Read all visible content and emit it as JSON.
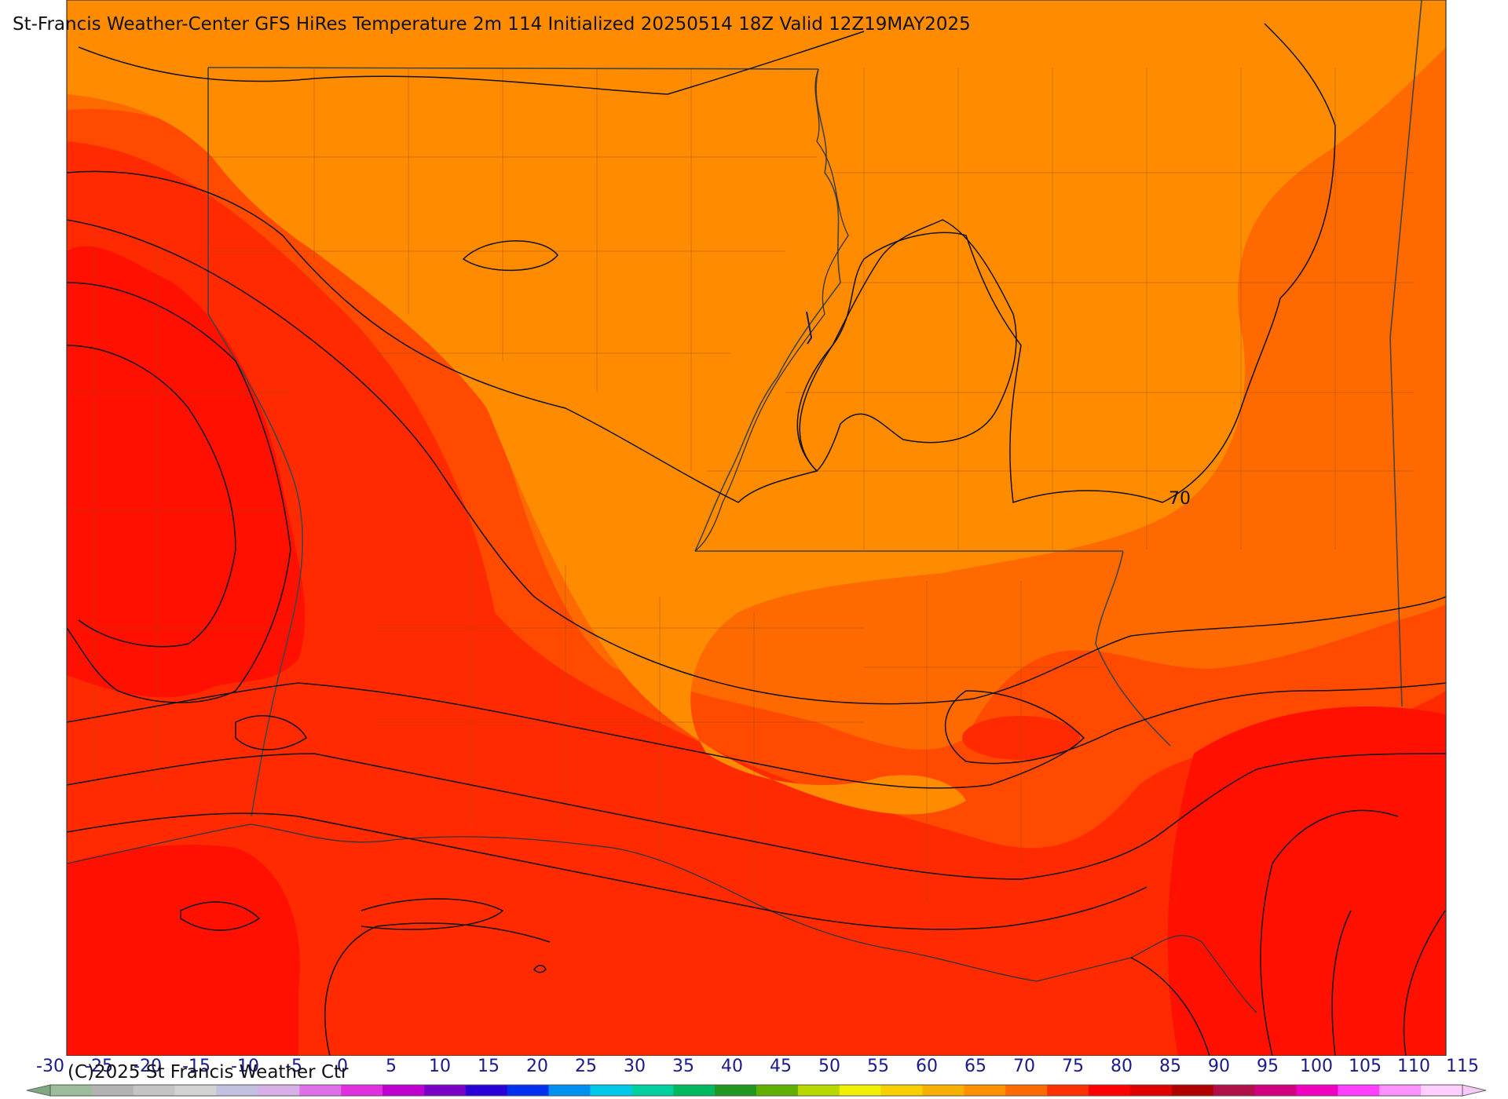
{
  "title": "St-Francis Weather-Center GFS HiRes Temperature 2m  114 Initialized 20250514 18Z Valid 12Z19MAY2025",
  "copyright": "(C)2025 St Francis Weather Ctr",
  "contour_label": "70",
  "colorbar": {
    "labels": [
      "-30",
      "-25",
      "-20",
      "-15",
      "-10",
      "-5",
      "0",
      "5",
      "10",
      "15",
      "20",
      "25",
      "30",
      "35",
      "40",
      "45",
      "50",
      "55",
      "60",
      "65",
      "70",
      "75",
      "80",
      "85",
      "90",
      "95",
      "100",
      "105",
      "110",
      "115"
    ],
    "colors": [
      "#9bbd9b",
      "#b3b3b3",
      "#c4c4c4",
      "#d3d3d3",
      "#c2c2e0",
      "#d8b0e8",
      "#e070e8",
      "#e030e0",
      "#c000d0",
      "#7a00c8",
      "#2a00d8",
      "#0030f0",
      "#0090f0",
      "#00c8e8",
      "#00d0a0",
      "#00b860",
      "#209820",
      "#60b000",
      "#b8d800",
      "#f0f000",
      "#f8d000",
      "#f8b000",
      "#ff9000",
      "#ff6a00",
      "#ff3000",
      "#ff0000",
      "#e00000",
      "#b00000",
      "#b0104a",
      "#d00080",
      "#f000c0",
      "#ff40ff",
      "#ff90ff",
      "#ffd0ff"
    ],
    "left_arrow_color": "#7fa87f",
    "right_arrow_color": "#f8c8f8"
  },
  "field_colors": {
    "band_60_65": "#ff8c00",
    "band_65_70": "#ff6a00",
    "band_70_75": "#ff4a00",
    "band_75_80": "#ff2a00",
    "band_80_85": "#ff1000"
  }
}
